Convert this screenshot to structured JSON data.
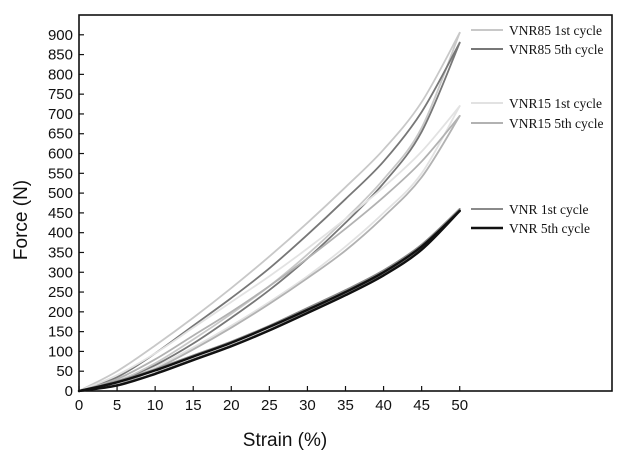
{
  "chart_data": {
    "type": "line",
    "title": "",
    "xlabel": "Strain (%)",
    "ylabel": "Force (N)",
    "xlim": [
      0,
      70
    ],
    "ylim": [
      0,
      950
    ],
    "x_ticks": [
      0,
      5,
      10,
      15,
      20,
      25,
      30,
      35,
      40,
      45,
      50
    ],
    "y_ticks": [
      0,
      50,
      100,
      150,
      200,
      250,
      300,
      350,
      400,
      450,
      500,
      550,
      600,
      650,
      700,
      750,
      800,
      850,
      900
    ],
    "grid": false,
    "legend_placement": "right",
    "series": [
      {
        "name": "VNR85 1st cycle",
        "color": "#c8c8c8",
        "x": [
          0,
          5,
          10,
          15,
          20,
          25,
          30,
          35,
          40,
          45,
          50
        ],
        "loading": [
          0,
          50,
          115,
          185,
          260,
          340,
          425,
          515,
          610,
          730,
          905
        ],
        "unloading": [
          0,
          25,
          70,
          130,
          195,
          265,
          345,
          435,
          535,
          665,
          905
        ]
      },
      {
        "name": "VNR85 5th cycle",
        "color": "#777777",
        "x": [
          0,
          5,
          10,
          15,
          20,
          25,
          30,
          35,
          40,
          45,
          50
        ],
        "loading": [
          0,
          35,
          95,
          165,
          235,
          310,
          395,
          485,
          580,
          705,
          880
        ],
        "unloading": [
          0,
          20,
          65,
          120,
          185,
          255,
          335,
          425,
          525,
          655,
          880
        ]
      },
      {
        "name": "VNR15 1st cycle",
        "color": "#e2e2e2",
        "x": [
          0,
          5,
          10,
          15,
          20,
          25,
          30,
          35,
          40,
          45,
          50
        ],
        "loading": [
          0,
          40,
          95,
          160,
          225,
          290,
          360,
          435,
          515,
          605,
          720
        ],
        "unloading": [
          0,
          20,
          60,
          110,
          165,
          225,
          290,
          365,
          450,
          550,
          720
        ]
      },
      {
        "name": "VNR15 5th cycle",
        "color": "#b2b2b2",
        "x": [
          0,
          5,
          10,
          15,
          20,
          25,
          30,
          35,
          40,
          45,
          50
        ],
        "loading": [
          0,
          30,
          80,
          140,
          200,
          265,
          335,
          410,
          490,
          580,
          695
        ],
        "unloading": [
          0,
          15,
          55,
          105,
          160,
          220,
          285,
          355,
          440,
          540,
          695
        ]
      },
      {
        "name": "VNR 1st cycle",
        "color": "#8a8a8a",
        "x": [
          0,
          5,
          10,
          15,
          20,
          25,
          30,
          35,
          40,
          45,
          50
        ],
        "loading": [
          0,
          25,
          55,
          90,
          125,
          165,
          210,
          255,
          305,
          370,
          460
        ],
        "unloading": [
          0,
          15,
          45,
          80,
          115,
          155,
          200,
          245,
          295,
          360,
          460
        ]
      },
      {
        "name": "VNR 5th cycle",
        "color": "#111111",
        "x": [
          0,
          5,
          10,
          15,
          20,
          25,
          30,
          35,
          40,
          45,
          50
        ],
        "loading": [
          0,
          22,
          52,
          87,
          122,
          162,
          205,
          250,
          300,
          365,
          455
        ],
        "unloading": [
          0,
          14,
          43,
          78,
          113,
          153,
          197,
          242,
          292,
          357,
          455
        ]
      }
    ],
    "legend_order": [
      0,
      1,
      2,
      3,
      4,
      5
    ]
  }
}
